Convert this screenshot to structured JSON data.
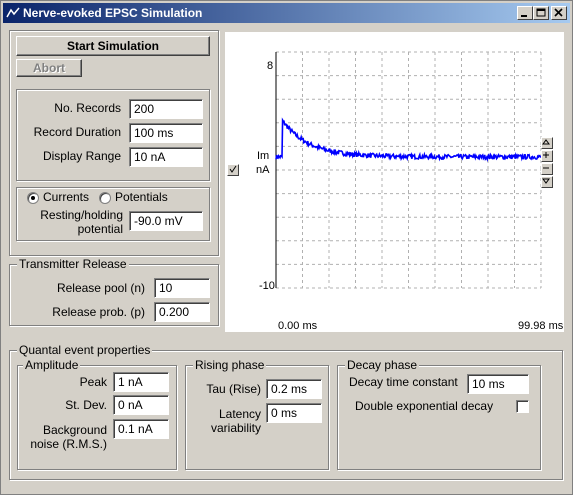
{
  "window": {
    "title": "Nerve-evoked EPSC Simulation"
  },
  "controls": {
    "start_label": "Start Simulation",
    "abort_label": "Abort"
  },
  "records": {
    "no_records_label": "No. Records",
    "no_records_value": "200",
    "duration_label": "Record Duration",
    "duration_value": "100 ms",
    "display_range_label": "Display Range",
    "display_range_value": "10 nA"
  },
  "mode": {
    "currents_label": "Currents",
    "potentials_label": "Potentials",
    "selected": "Currents",
    "holding_label_1": "Resting/holding",
    "holding_label_2": "potential",
    "holding_value": "-90.0 mV"
  },
  "transmitter": {
    "title": "Transmitter Release",
    "pool_label": "Release pool (n)",
    "pool_value": "10",
    "prob_label": "Release prob. (p)",
    "prob_value": "0.200"
  },
  "quantal": {
    "title": "Quantal event properties",
    "amplitude": {
      "title": "Amplitude",
      "peak_label": "Peak",
      "peak_value": "1 nA",
      "stdev_label": "St. Dev.",
      "stdev_value": "0 nA",
      "noise_label_1": "Background",
      "noise_label_2": "noise (R.M.S.)",
      "noise_value": "0.1 nA"
    },
    "rising": {
      "title": "Rising phase",
      "tau_label": "Tau (Rise)",
      "tau_value": "0.2 ms",
      "latency_label_1": "Latency",
      "latency_label_2": "variability",
      "latency_value": "0 ms"
    },
    "decay": {
      "title": "Decay phase",
      "tau_label": "Decay time constant",
      "tau_value": "10 ms",
      "double_label": "Double exponential decay"
    }
  },
  "chart_data": {
    "type": "line",
    "x_start_label": "0.00 ms",
    "x_end_label": "99.98 ms",
    "y_top_label": "8",
    "y_bottom_label": "-10",
    "channel_name": "Im",
    "channel_units": "nA",
    "xlim": [
      0,
      99.98
    ],
    "ylim": [
      -10,
      8
    ],
    "baseline": 0,
    "onset_ms": 2.3,
    "peak": 2.8,
    "decay_tau_ms": 10,
    "line_color": "#0000ff",
    "grid": true
  },
  "colors": {
    "titlebar_start": "#0a246a",
    "titlebar_end": "#a6caf0",
    "trace": "#0000ff"
  }
}
